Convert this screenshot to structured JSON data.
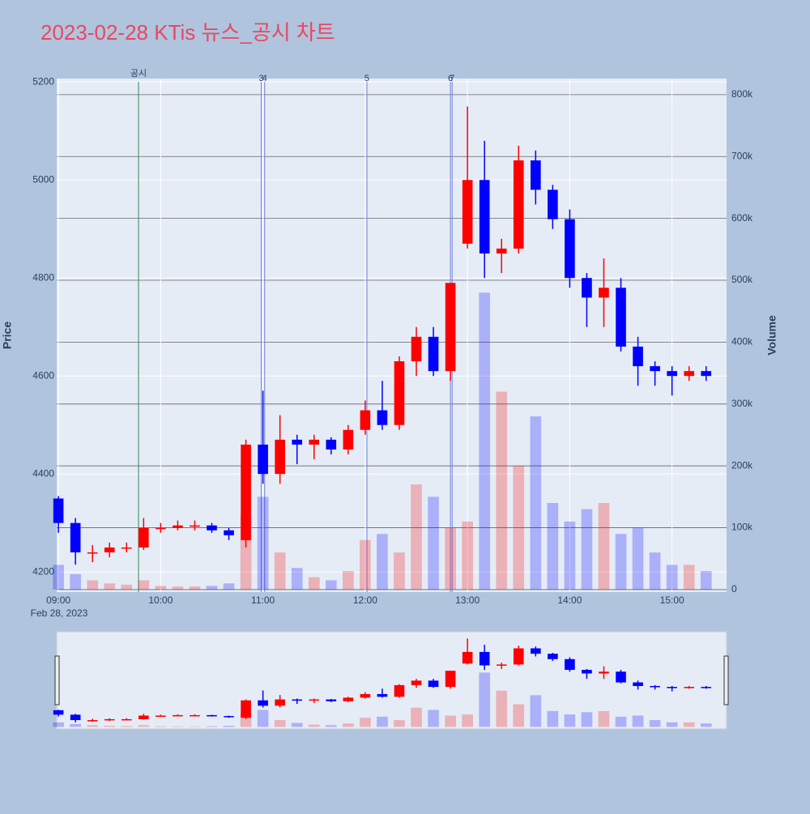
{
  "chart_data": {
    "type": "candlestick",
    "title": "2023-02-28 KTis 뉴스_공시 차트",
    "y_label": "Price",
    "y2_label": "Volume",
    "x_date_label": "Feb 28, 2023",
    "x": [
      "09:00",
      "09:10",
      "09:20",
      "09:30",
      "09:40",
      "09:50",
      "10:00",
      "10:10",
      "10:20",
      "10:30",
      "10:40",
      "10:50",
      "11:00",
      "11:10",
      "11:20",
      "11:30",
      "11:40",
      "11:50",
      "12:00",
      "12:10",
      "12:20",
      "12:30",
      "12:40",
      "12:50",
      "13:00",
      "13:10",
      "13:20",
      "13:30",
      "13:40",
      "13:50",
      "14:00",
      "14:10",
      "14:20",
      "14:30",
      "14:40",
      "14:50",
      "15:00",
      "15:10",
      "15:20"
    ],
    "open": [
      4350,
      4300,
      4240,
      4240,
      4250,
      4250,
      4290,
      4290,
      4295,
      4295,
      4285,
      4265,
      4460,
      4400,
      4470,
      4460,
      4470,
      4450,
      4490,
      4530,
      4500,
      4630,
      4680,
      4610,
      4870,
      5000,
      4850,
      4860,
      5040,
      4980,
      4920,
      4800,
      4760,
      4780,
      4660,
      4620,
      4610,
      4600,
      4610
    ],
    "high": [
      4355,
      4310,
      4255,
      4260,
      4260,
      4310,
      4300,
      4305,
      4305,
      4300,
      4290,
      4470,
      4570,
      4520,
      4480,
      4480,
      4475,
      4500,
      4550,
      4590,
      4640,
      4700,
      4700,
      4790,
      5150,
      5080,
      4880,
      5070,
      5060,
      4990,
      4940,
      4810,
      4840,
      4800,
      4680,
      4630,
      4620,
      4620,
      4620
    ],
    "low": [
      4280,
      4215,
      4220,
      4230,
      4240,
      4245,
      4280,
      4285,
      4285,
      4280,
      4265,
      4250,
      4380,
      4380,
      4420,
      4430,
      4440,
      4440,
      4480,
      4490,
      4490,
      4600,
      4600,
      4590,
      4860,
      4800,
      4810,
      4850,
      4950,
      4900,
      4780,
      4700,
      4700,
      4650,
      4580,
      4580,
      4560,
      4590,
      4590
    ],
    "close": [
      4300,
      4240,
      4240,
      4250,
      4250,
      4290,
      4290,
      4295,
      4295,
      4285,
      4275,
      4460,
      4400,
      4470,
      4460,
      4470,
      4450,
      4490,
      4530,
      4500,
      4630,
      4680,
      4610,
      4790,
      5000,
      4850,
      4860,
      5040,
      4980,
      4920,
      4800,
      4760,
      4780,
      4660,
      4620,
      4610,
      4600,
      4610,
      4600
    ],
    "volume": [
      40000,
      25000,
      15000,
      10000,
      8000,
      15000,
      6000,
      5000,
      5000,
      6000,
      10000,
      120000,
      150000,
      60000,
      35000,
      20000,
      15000,
      30000,
      80000,
      90000,
      60000,
      170000,
      150000,
      100000,
      110000,
      480000,
      320000,
      200000,
      280000,
      140000,
      110000,
      130000,
      140000,
      90000,
      100000,
      60000,
      40000,
      40000,
      30000
    ],
    "increasing_color": "#ff0000",
    "decreasing_color": "#0000ff",
    "xlim": [
      "08:59",
      "15:32"
    ],
    "xticks": [
      "09:00",
      "10:00",
      "11:00",
      "12:00",
      "13:00",
      "14:00",
      "15:00"
    ],
    "ylim": [
      4159,
      5207
    ],
    "yticks": [
      4200,
      4400,
      4600,
      4800,
      5000,
      5200
    ],
    "y2lim": [
      -4000,
      826000
    ],
    "y2ticks": [
      0,
      {
        "value": 100000,
        "label": "100k"
      },
      {
        "value": 200000,
        "label": "200k"
      },
      {
        "value": 300000,
        "label": "300k"
      },
      {
        "value": 400000,
        "label": "400k"
      },
      {
        "value": 500000,
        "label": "500k"
      },
      {
        "value": 600000,
        "label": "600k"
      },
      {
        "value": 700000,
        "label": "700k"
      },
      {
        "value": 800000,
        "label": "800k"
      }
    ],
    "annotations": [
      {
        "x": "09:47",
        "label": "공시",
        "color": "#2e8b57"
      },
      {
        "x": "10:59",
        "label": "3",
        "color": "#6f7fe0"
      },
      {
        "x": "11:01",
        "label": "4",
        "color": "#6f7fe0"
      },
      {
        "x": "12:01",
        "label": "5",
        "color": "#6f7fe0"
      },
      {
        "x": "12:50",
        "label": "6",
        "color": "#6f7fe0"
      },
      {
        "x": "12:51",
        "label": "7",
        "color": "#6f7fe0"
      }
    ]
  }
}
